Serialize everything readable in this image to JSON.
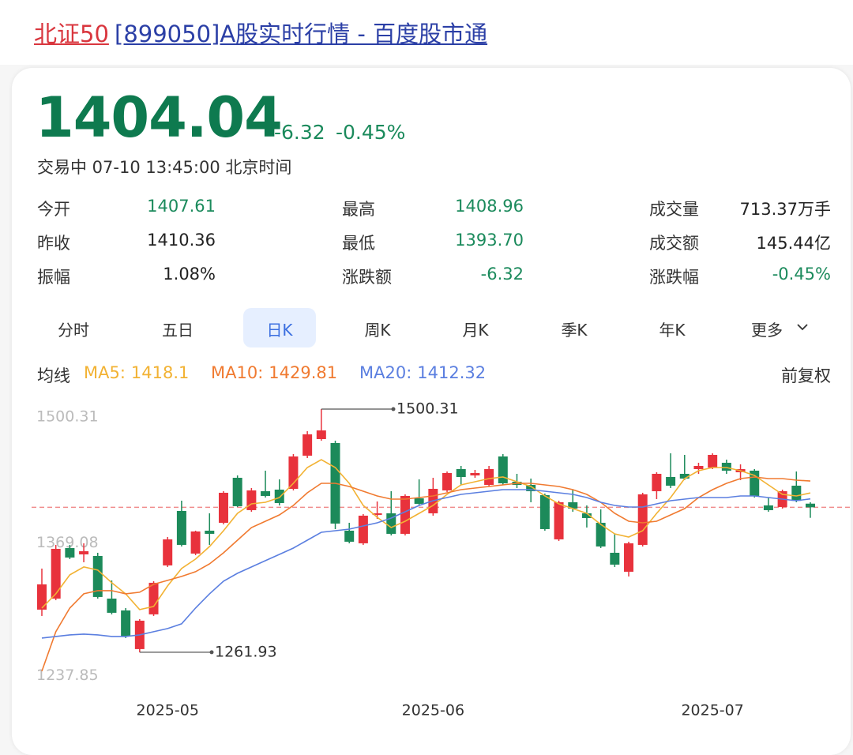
{
  "header": {
    "title_red": "北证50",
    "title_rest": "[899050]A股实时行情 - 百度股市通"
  },
  "quote": {
    "price": 1404.04,
    "change": "-6.32",
    "change_pct": "-0.45%",
    "status": "交易中 07-10 13:45:00 北京时间"
  },
  "stats": [
    {
      "label": "今开",
      "value": "1407.61",
      "color": "#1b8a5c"
    },
    {
      "label": "最高",
      "value": "1408.96",
      "color": "#1b8a5c"
    },
    {
      "label": "成交量",
      "value": "713.37万手",
      "color": "#222222"
    },
    {
      "label": "昨收",
      "value": "1410.36",
      "color": "#222222"
    },
    {
      "label": "最低",
      "value": "1393.70",
      "color": "#1b8a5c"
    },
    {
      "label": "成交额",
      "value": "145.44亿",
      "color": "#222222"
    },
    {
      "label": "振幅",
      "value": "1.08%",
      "color": "#222222"
    },
    {
      "label": "涨跌额",
      "value": "-6.32",
      "color": "#1b8a5c"
    },
    {
      "label": "涨跌幅",
      "value": "-0.45%",
      "color": "#1b8a5c"
    }
  ],
  "tabs": {
    "items": [
      "分时",
      "五日",
      "日K",
      "周K",
      "月K",
      "季K",
      "年K",
      "更多"
    ],
    "active": 2
  },
  "ma_bar": {
    "label": "均线",
    "adjust": "前复权"
  },
  "chart_data": {
    "type": "candlestick",
    "categories": [
      null,
      null,
      null,
      null,
      null,
      null,
      null,
      null,
      null,
      "2025-05",
      null,
      null,
      null,
      null,
      null,
      null,
      null,
      null,
      null,
      null,
      null,
      null,
      null,
      null,
      null,
      null,
      null,
      null,
      "2025-06",
      null,
      null,
      null,
      null,
      null,
      null,
      null,
      null,
      null,
      null,
      null,
      null,
      null,
      null,
      null,
      null,
      null,
      null,
      null,
      "2025-07",
      null,
      null,
      null,
      null,
      null,
      null,
      null
    ],
    "open": [
      1303.71,
      1314.55,
      1364.08,
      1357.89,
      1356.34,
      1314.55,
      1302.94,
      1265.01,
      1299.07,
      1347.06,
      1400.46,
      1358.67,
      1381.11,
      1388.85,
      1432.97,
      1401.24,
      1419.81,
      1421.36,
      1422.13,
      1454.64,
      1470.9,
      1467.03,
      1381.11,
      1368.73,
      1396.59,
      1398.14,
      1378.02,
      1412.85,
      1398.14,
      1420.59,
      1441.48,
      1435.29,
      1426.0,
      1453.87,
      1429.1,
      1426.0,
      1415.94,
      1372.6,
      1408.98,
      1398.14,
      1388.85,
      1359.44,
      1340.86,
      1367.18,
      1419.81,
      1433.74,
      1436.84,
      1441.48,
      1443.03,
      1447.68,
      1438.39,
      1439.94,
      1405.88,
      1404.33,
      1425.23,
      1407.61
    ],
    "high": [
      1343.96,
      1367.18,
      1367.18,
      1368.73,
      1359.44,
      1332.35,
      1305.26,
      1294.42,
      1331.58,
      1374.92,
      1410.52,
      1381.11,
      1398.14,
      1419.81,
      1435.29,
      1422.91,
      1439.94,
      1431.42,
      1456.19,
      1478.64,
      1500.31,
      1469.35,
      1388.85,
      1397.37,
      1409.75,
      1419.81,
      1416.72,
      1431.42,
      1432.97,
      1439.16,
      1444.58,
      1440.71,
      1444.58,
      1456.19,
      1436.84,
      1432.2,
      1417.49,
      1410.52,
      1421.36,
      1405.88,
      1402.01,
      1378.02,
      1370.28,
      1418.26,
      1438.39,
      1456.96,
      1455.42,
      1447.68,
      1456.96,
      1450.77,
      1446.13,
      1441.48,
      1413.62,
      1421.36,
      1439.16,
      1408.96
    ],
    "low": [
      1297.52,
      1313.0,
      1353.25,
      1350.15,
      1314.55,
      1299.07,
      1275.85,
      1261.93,
      1297.52,
      1345.51,
      1365.63,
      1357.12,
      1367.18,
      1387.3,
      1404.33,
      1399.69,
      1413.62,
      1405.88,
      1420.59,
      1452.32,
      1469.35,
      1382.66,
      1368.73,
      1367.18,
      1392.72,
      1376.47,
      1376.47,
      1405.88,
      1395.82,
      1419.04,
      1426.0,
      1432.97,
      1424.46,
      1426.0,
      1422.91,
      1408.98,
      1381.11,
      1371.05,
      1399.69,
      1384.21,
      1364.08,
      1345.51,
      1336.22,
      1365.63,
      1412.07,
      1422.91,
      1430.65,
      1436.84,
      1441.48,
      1436.84,
      1430.65,
      1413.62,
      1399.69,
      1402.78,
      1408.98,
      1393.7
    ],
    "close": [
      1328.48,
      1363.31,
      1354.8,
      1360.99,
      1316.1,
      1300.62,
      1277.4,
      1292.88,
      1330.03,
      1372.6,
      1367.18,
      1380.34,
      1378.02,
      1418.26,
      1405.11,
      1420.59,
      1415.17,
      1408.2,
      1453.87,
      1475.54,
      1479.41,
      1388.08,
      1370.28,
      1395.82,
      1398.14,
      1378.02,
      1415.17,
      1407.43,
      1422.13,
      1437.61,
      1433.74,
      1437.61,
      1441.48,
      1427.55,
      1426.0,
      1419.81,
      1382.66,
      1408.98,
      1402.78,
      1393.5,
      1365.63,
      1347.83,
      1368.73,
      1416.72,
      1436.84,
      1425.23,
      1432.2,
      1444.58,
      1455.42,
      1439.94,
      1441.48,
      1415.17,
      1401.24,
      1419.81,
      1410.36,
      1404.04
    ],
    "up_color": "#e8323c",
    "down_color": "#1c8a5a",
    "series": [
      {
        "name": "MA5:",
        "color": "#f2b233",
        "values": [
          1305.26,
          1319.19,
          1337.77,
          1345.51,
          1342.41,
          1330.03,
          1319.19,
          1303.71,
          1306.81,
          1326.93,
          1343.96,
          1353.25,
          1365.63,
          1381.11,
          1398.14,
          1407.43,
          1408.98,
          1413.62,
          1427.55,
          1443.03,
          1450.77,
          1443.03,
          1427.55,
          1405.88,
          1394.27,
          1384.21,
          1390.4,
          1398.14,
          1405.88,
          1416.72,
          1426.0,
          1429.1,
          1432.2,
          1433.74,
          1429.1,
          1424.46,
          1415.17,
          1407.43,
          1402.78,
          1398.14,
          1387.3,
          1378.02,
          1374.92,
          1381.11,
          1398.14,
          1413.62,
          1432.2,
          1439.94,
          1443.03,
          1443.03,
          1439.94,
          1435.29,
          1426.0,
          1416.72,
          1415.17,
          1418.1
        ]
      },
      {
        "name": "MA10:",
        "color": "#f07a30",
        "values": [
          1243.34,
          1282.04,
          1305.26,
          1319.19,
          1322.29,
          1322.29,
          1319.19,
          1320.74,
          1328.48,
          1332.35,
          1336.22,
          1340.86,
          1348.6,
          1359.44,
          1371.82,
          1384.21,
          1390.4,
          1396.59,
          1405.88,
          1418.26,
          1427.55,
          1427.55,
          1424.46,
          1419.81,
          1415.17,
          1412.07,
          1412.07,
          1413.62,
          1415.17,
          1418.26,
          1421.36,
          1422.91,
          1424.46,
          1426.0,
          1427.55,
          1427.55,
          1426.0,
          1424.46,
          1421.36,
          1416.72,
          1408.98,
          1398.14,
          1390.4,
          1388.85,
          1390.4,
          1396.59,
          1402.78,
          1413.62,
          1421.36,
          1427.55,
          1432.2,
          1433.74,
          1432.2,
          1432.2,
          1430.65,
          1429.81
        ]
      },
      {
        "name": "MA20:",
        "color": "#5b7fe0",
        "values": [
          1275.85,
          1277.4,
          1278.94,
          1279.72,
          1278.94,
          1277.4,
          1277.4,
          1278.94,
          1282.04,
          1285.14,
          1289.78,
          1305.26,
          1319.19,
          1331.58,
          1339.32,
          1345.51,
          1351.7,
          1357.89,
          1364.08,
          1371.82,
          1379.56,
          1381.11,
          1382.66,
          1385.76,
          1388.85,
          1393.5,
          1399.69,
          1405.88,
          1410.52,
          1413.62,
          1416.72,
          1418.26,
          1419.81,
          1421.36,
          1421.36,
          1421.36,
          1419.81,
          1418.26,
          1416.72,
          1413.62,
          1408.98,
          1405.88,
          1404.33,
          1404.33,
          1407.43,
          1410.52,
          1412.07,
          1413.62,
          1413.62,
          1413.62,
          1415.17,
          1415.17,
          1413.62,
          1412.07,
          1410.52,
          1412.32
        ]
      }
    ],
    "ylim": [
      1237.85,
      1500.31
    ],
    "yticks": [
      1237.85,
      1369.08,
      1500.31
    ],
    "max_label": 1500.31,
    "min_label": 1261.93,
    "ref_color": "#f08c8c"
  }
}
